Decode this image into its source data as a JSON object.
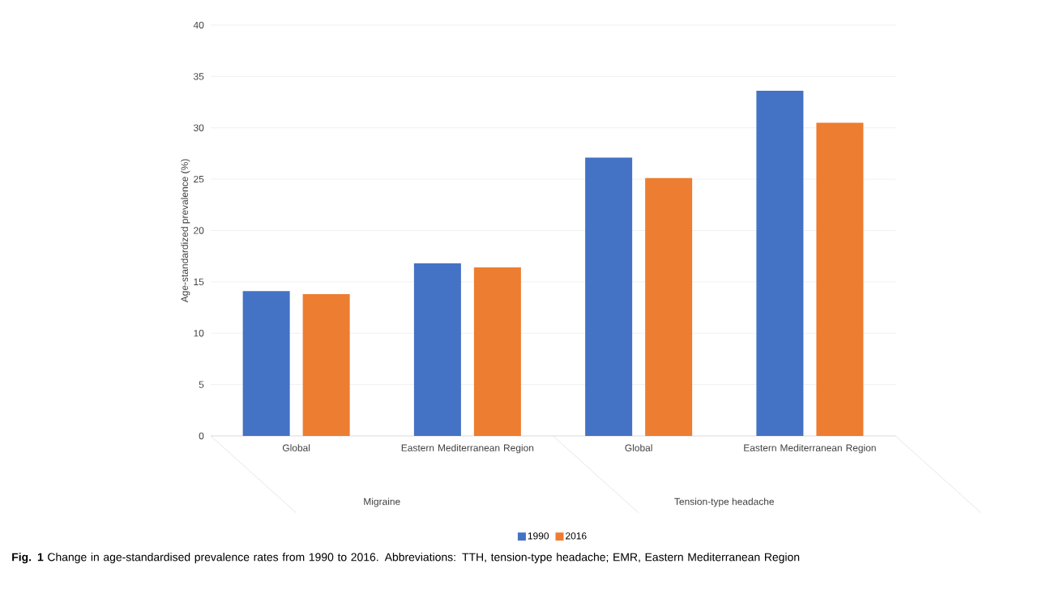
{
  "chart_data": {
    "type": "bar",
    "ylabel": "Age-standardized prevalence (%)",
    "categories": [
      "Global",
      "Eastern Mediterranean Region",
      "Global",
      "Eastern Mediterranean Region"
    ],
    "series": [
      {
        "name": "1990",
        "color": "#4472c4",
        "values": [
          14.1,
          16.8,
          27.1,
          33.6
        ]
      },
      {
        "name": "2016",
        "color": "#ed7d31",
        "values": [
          13.8,
          16.4,
          25.1,
          30.5
        ]
      }
    ],
    "ylim": [
      0,
      40
    ],
    "yticks": [
      0,
      5,
      10,
      15,
      20,
      25,
      30,
      35,
      40
    ],
    "grid": "y",
    "legend": "bottom",
    "annotations": [
      "Migraine",
      "Tension-type headache",
      "**Fig. 1** Change in age-standardised prevalence rates from 1990 to 2016. Abbreviations: TTH, tension-type headache; EMR, Eastern Mediterranean Region"
    ]
  }
}
